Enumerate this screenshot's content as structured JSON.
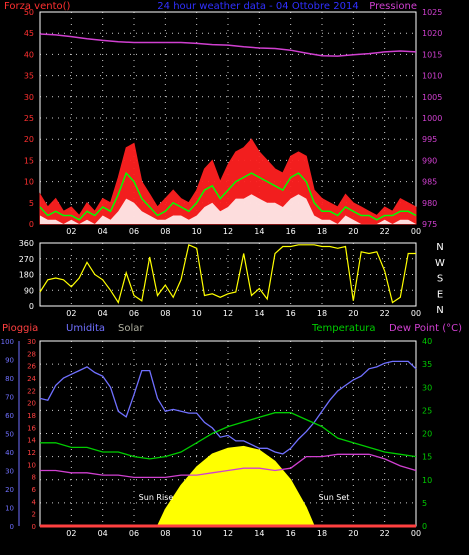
{
  "colors": {
    "wind": "#ff2020",
    "wind_avg": "#00ff00",
    "wind_min": "#ffffff",
    "pressure": "#d040d0",
    "direction": "#ffff00",
    "humidity": "#7070ff",
    "temperature": "#00cc00",
    "dew_point": "#d040d0",
    "solar": "#ffff00",
    "rain": "#ff4040",
    "grid": "#ffffff",
    "axis_left_top": "#ff3030",
    "axis_right_top": "#d040d0",
    "title": "#3030ff",
    "white": "#ffffff"
  },
  "chart_data": [
    {
      "type": "line",
      "title": "24 hour weather data - 04 Ottobre 2014",
      "left_label": "Forza vento()",
      "right_label": "Pressione",
      "x_ticks": [
        "02",
        "04",
        "06",
        "08",
        "10",
        "12",
        "14",
        "16",
        "18",
        "20",
        "22",
        "00"
      ],
      "x_range": [
        0,
        24
      ],
      "ylim_left": [
        0,
        50
      ],
      "yticks_left": [
        0,
        5,
        10,
        15,
        20,
        25,
        30,
        35,
        40,
        45,
        50
      ],
      "ylim_right": [
        975,
        1025
      ],
      "yticks_right": [
        975,
        980,
        985,
        990,
        995,
        1000,
        1005,
        1010,
        1015,
        1020,
        1025
      ],
      "series": [
        {
          "name": "wind_gust",
          "axis": "left",
          "x": [
            0,
            0.5,
            1,
            1.5,
            2,
            2.5,
            3,
            3.5,
            4,
            4.5,
            5,
            5.5,
            6,
            6.5,
            7,
            7.5,
            8,
            8.5,
            9,
            9.5,
            10,
            10.5,
            11,
            11.5,
            12,
            12.5,
            13,
            13.5,
            14,
            14.5,
            15,
            15.5,
            16,
            16.5,
            17,
            17.5,
            18,
            18.5,
            19,
            19.5,
            20,
            20.5,
            21,
            21.5,
            22,
            22.5,
            23,
            23.5,
            24
          ],
          "y": [
            7,
            4,
            6,
            3,
            4,
            2,
            5,
            3,
            6,
            5,
            11,
            18,
            19,
            10,
            7,
            4,
            6,
            8,
            6,
            5,
            8,
            13,
            15,
            10,
            14,
            17,
            18,
            20,
            17,
            15,
            13,
            12,
            16,
            17,
            16,
            8,
            6,
            5,
            4,
            7,
            5,
            4,
            3,
            2,
            4,
            3,
            6,
            5,
            4
          ]
        },
        {
          "name": "wind_avg",
          "axis": "left",
          "x": [
            0,
            0.5,
            1,
            1.5,
            2,
            2.5,
            3,
            3.5,
            4,
            4.5,
            5,
            5.5,
            6,
            6.5,
            7,
            7.5,
            8,
            8.5,
            9,
            9.5,
            10,
            10.5,
            11,
            11.5,
            12,
            12.5,
            13,
            13.5,
            14,
            14.5,
            15,
            15.5,
            16,
            16.5,
            17,
            17.5,
            18,
            18.5,
            19,
            19.5,
            20,
            20.5,
            21,
            21.5,
            22,
            22.5,
            23,
            23.5,
            24
          ],
          "y": [
            4,
            2,
            3,
            2,
            2,
            1,
            3,
            2,
            4,
            3,
            7,
            12,
            10,
            6,
            4,
            2,
            3,
            5,
            4,
            3,
            5,
            8,
            9,
            6,
            8,
            10,
            11,
            12,
            11,
            10,
            9,
            8,
            11,
            12,
            10,
            5,
            3,
            3,
            2,
            4,
            3,
            2,
            2,
            1,
            2,
            2,
            3,
            3,
            2
          ]
        },
        {
          "name": "wind_min",
          "axis": "left",
          "x": [
            0,
            0.5,
            1,
            1.5,
            2,
            2.5,
            3,
            3.5,
            4,
            4.5,
            5,
            5.5,
            6,
            6.5,
            7,
            7.5,
            8,
            8.5,
            9,
            9.5,
            10,
            10.5,
            11,
            11.5,
            12,
            12.5,
            13,
            13.5,
            14,
            14.5,
            15,
            15.5,
            16,
            16.5,
            17,
            17.5,
            18,
            18.5,
            19,
            19.5,
            20,
            20.5,
            21,
            21.5,
            22,
            22.5,
            23,
            23.5,
            24
          ],
          "y": [
            2,
            1,
            1,
            0,
            1,
            0,
            1,
            0,
            2,
            1,
            3,
            6,
            5,
            3,
            2,
            1,
            1,
            2,
            2,
            1,
            2,
            4,
            5,
            3,
            4,
            6,
            6,
            7,
            6,
            5,
            5,
            4,
            6,
            7,
            6,
            2,
            1,
            1,
            0,
            2,
            1,
            0,
            0,
            0,
            1,
            0,
            1,
            1,
            0
          ]
        },
        {
          "name": "pressure",
          "axis": "right",
          "x": [
            0,
            1,
            2,
            3,
            4,
            5,
            6,
            7,
            8,
            9,
            10,
            11,
            12,
            13,
            14,
            15,
            16,
            17,
            18,
            19,
            20,
            21,
            22,
            23,
            24
          ],
          "y": [
            1019.8,
            1019.6,
            1019.2,
            1018.7,
            1018.3,
            1018.0,
            1017.8,
            1017.8,
            1017.8,
            1017.8,
            1017.6,
            1017.3,
            1017.2,
            1016.8,
            1016.5,
            1016.4,
            1016.0,
            1015.3,
            1014.7,
            1014.6,
            1014.9,
            1015.2,
            1015.6,
            1015.8,
            1015.6
          ]
        }
      ]
    },
    {
      "type": "scatter",
      "x_ticks": [
        "02",
        "04",
        "06",
        "08",
        "10",
        "12",
        "14",
        "16",
        "18",
        "20",
        "22",
        "00"
      ],
      "x_range": [
        0,
        24
      ],
      "ylim": [
        0,
        360
      ],
      "yticks": [
        0,
        90,
        180,
        270,
        360
      ],
      "compass": [
        "N",
        "W",
        "S",
        "E",
        "N"
      ],
      "series": [
        {
          "name": "wind_direction",
          "x": [
            0,
            0.5,
            1,
            1.5,
            2,
            2.5,
            3,
            3.5,
            4,
            4.5,
            5,
            5.5,
            6,
            6.5,
            7,
            7.5,
            8,
            8.5,
            9,
            9.5,
            10,
            10.5,
            11,
            11.5,
            12,
            12.5,
            13,
            13.5,
            14,
            14.5,
            15,
            15.5,
            16,
            16.5,
            17,
            17.5,
            18,
            18.5,
            19,
            19.5,
            20,
            20.5,
            21,
            21.5,
            22,
            22.5,
            23,
            23.5,
            24
          ],
          "y": [
            80,
            150,
            160,
            150,
            110,
            160,
            250,
            180,
            150,
            90,
            20,
            190,
            60,
            30,
            280,
            60,
            120,
            50,
            150,
            350,
            330,
            60,
            70,
            50,
            70,
            80,
            300,
            60,
            100,
            40,
            300,
            340,
            340,
            350,
            350,
            350,
            340,
            340,
            330,
            340,
            30,
            310,
            300,
            310,
            200,
            20,
            50,
            300,
            300
          ]
        }
      ]
    },
    {
      "type": "line",
      "labels": {
        "rain": "Pioggia",
        "humidity": "Umidita",
        "solar": "Solar",
        "temperature": "Temperatura",
        "dew_point": "Dew Point (°C)"
      },
      "annotations": {
        "sun_rise": "Sun Rise",
        "sun_set": "Sun Set"
      },
      "x_ticks": [
        "02",
        "04",
        "06",
        "08",
        "10",
        "12",
        "14",
        "16",
        "18",
        "20",
        "22",
        "00"
      ],
      "x_range": [
        0,
        24
      ],
      "ylim_humidity": [
        0,
        100
      ],
      "yticks_humidity": [
        0,
        10,
        20,
        30,
        40,
        50,
        60,
        70,
        80,
        90,
        100
      ],
      "ylim_rain": [
        0,
        30
      ],
      "yticks_rain": [
        0,
        2,
        4,
        6,
        8,
        10,
        12,
        14,
        16,
        18,
        20,
        22,
        24,
        26,
        28,
        30
      ],
      "ylim_temp": [
        0,
        40
      ],
      "yticks_temp": [
        0,
        5,
        10,
        15,
        20,
        25,
        30,
        35,
        40
      ],
      "series": [
        {
          "name": "humidity",
          "axis": "humidity",
          "x": [
            0,
            0.5,
            1,
            1.5,
            2,
            2.5,
            3,
            3.5,
            4,
            4.5,
            5,
            5.5,
            6,
            6.5,
            7,
            7.5,
            8,
            8.5,
            9,
            9.5,
            10,
            10.5,
            11,
            11.5,
            12,
            12.5,
            13,
            13.5,
            14,
            14.5,
            15,
            15.5,
            16,
            16.5,
            17,
            17.5,
            18,
            18.5,
            19,
            19.5,
            20,
            20.5,
            21,
            21.5,
            22,
            22.5,
            23,
            23.5,
            24
          ],
          "y": [
            69,
            68,
            76,
            80,
            82,
            84,
            86,
            83,
            81,
            75,
            62,
            59,
            71,
            84,
            84,
            69,
            62,
            63,
            62,
            61,
            61,
            56,
            53,
            48,
            49,
            46,
            46,
            44,
            42,
            42,
            40,
            39,
            42,
            47,
            51,
            56,
            62,
            68,
            73,
            76,
            79,
            81,
            85,
            86,
            88,
            89,
            89,
            89,
            85
          ]
        },
        {
          "name": "temperature",
          "axis": "temp",
          "x": [
            0,
            1,
            2,
            3,
            4,
            5,
            6,
            7,
            8,
            9,
            10,
            11,
            12,
            13,
            14,
            15,
            16,
            17,
            18,
            19,
            20,
            21,
            22,
            23,
            24
          ],
          "y": [
            18,
            18,
            17,
            17,
            16,
            16,
            15,
            14.5,
            15,
            16,
            18,
            20,
            21.5,
            22.5,
            23.5,
            24.5,
            24.5,
            23,
            21.5,
            19,
            18,
            17,
            16,
            15.5,
            15
          ]
        },
        {
          "name": "dew_point",
          "axis": "temp",
          "x": [
            0,
            1,
            2,
            3,
            4,
            5,
            6,
            7,
            8,
            9,
            10,
            11,
            12,
            13,
            14,
            15,
            16,
            17,
            18,
            19,
            20,
            21,
            22,
            23,
            24
          ],
          "y": [
            12,
            12,
            11.5,
            11.5,
            11,
            11,
            10.5,
            10.5,
            10.5,
            11,
            11,
            11.5,
            12,
            12.5,
            12.5,
            12,
            12.5,
            15,
            15,
            15.5,
            15.5,
            15.5,
            14.5,
            13,
            12
          ]
        },
        {
          "name": "solar",
          "axis": "humidity",
          "x": [
            7.5,
            8,
            9,
            10,
            11,
            12,
            13,
            14,
            15,
            16,
            17,
            17.5
          ],
          "y": [
            0,
            9,
            22,
            32,
            39,
            42,
            43,
            41,
            35,
            25,
            10,
            0
          ]
        },
        {
          "name": "rain",
          "axis": "rain",
          "x": [
            0,
            24
          ],
          "y": [
            0,
            0
          ]
        }
      ]
    }
  ]
}
